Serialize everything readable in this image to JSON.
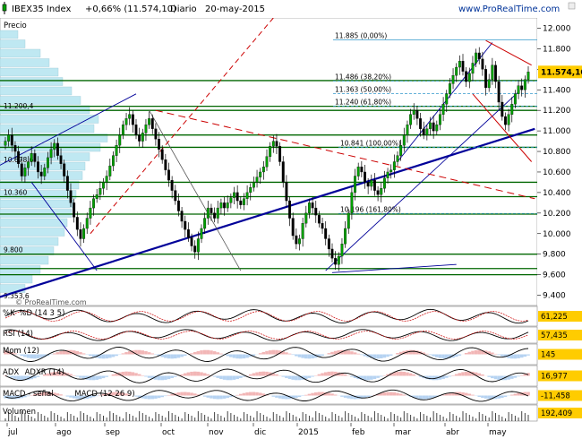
{
  "header": {
    "symbol": "IBEX35 Index",
    "change": "+0,66% (11.574,10)",
    "period": "Diario",
    "date": "20-may-2015",
    "site": "www.ProRealTime.com",
    "price_label": "Precio",
    "watermark": "© ProRealTime.com"
  },
  "colors": {
    "up_candle": "#00a000",
    "down_candle": "#000000",
    "support_green": "#006600",
    "trend_blue": "#000099",
    "resistance_red": "#cc0000",
    "fib_blue": "#3399cc",
    "volume_profile": "#bfe8f2",
    "last_price_bg": "#ffcc00",
    "panel_value_bg": "#ffcc00"
  },
  "chart_data": {
    "type": "candlestick",
    "title": "IBEX35 Index Diario",
    "y_axis_ticks": [
      "12.000",
      "11.800",
      "11.600",
      "11.400",
      "11.200",
      "11.000",
      "10.800",
      "10.600",
      "10.400",
      "10.200",
      "10.000",
      "9.800",
      "9.600",
      "9.400"
    ],
    "ylim": [
      9300,
      12100
    ],
    "x_axis_ticks": [
      "jul",
      "ago",
      "sep",
      "oct",
      "nov",
      "dic",
      "2015",
      "feb",
      "mar",
      "abr",
      "may"
    ],
    "last_price": "11.574,10",
    "left_level_labels": [
      "11.200,4",
      "10.678,6",
      "10.360",
      "9.800",
      "9.353,6"
    ],
    "fibonacci_levels": [
      {
        "label": "11.885 (0,00%)",
        "value": 11885
      },
      {
        "label": "11.486 (38,20%)",
        "value": 11486
      },
      {
        "label": "11.363 (50,00%)",
        "value": 11363
      },
      {
        "label": "11.240 (61,80%)",
        "value": 11240
      },
      {
        "label": "10.841 (100,00%)",
        "value": 10841
      },
      {
        "label": "10.196 (161,80%)",
        "value": 10196
      }
    ],
    "horizontal_support_levels": [
      11490,
      11240,
      11200,
      10960,
      10840,
      10500,
      10360,
      10190,
      9800,
      9660,
      9600
    ],
    "closes": [
      10900,
      10960,
      10860,
      10800,
      10680,
      10560,
      10640,
      10700,
      10780,
      10700,
      10600,
      10560,
      10640,
      10740,
      10820,
      10880,
      10760,
      10680,
      10560,
      10420,
      10300,
      10160,
      10040,
      9950,
      10050,
      10150,
      10250,
      10340,
      10380,
      10440,
      10500,
      10560,
      10660,
      10760,
      10860,
      10960,
      11060,
      11120,
      11160,
      11060,
      10960,
      10900,
      10980,
      11060,
      11120,
      11020,
      10920,
      10820,
      10720,
      10620,
      10520,
      10420,
      10320,
      10220,
      10120,
      10040,
      9960,
      9880,
      9820,
      9950,
      10050,
      10150,
      10250,
      10200,
      10150,
      10250,
      10300,
      10250,
      10300,
      10350,
      10400,
      10320,
      10280,
      10340,
      10400,
      10450,
      10500,
      10550,
      10600,
      10650,
      10750,
      10850,
      10900,
      10850,
      10700,
      10500,
      10320,
      10150,
      9980,
      9900,
      9950,
      10100,
      10200,
      10300,
      10250,
      10180,
      10100,
      10050,
      9950,
      9850,
      9760,
      9700,
      9780,
      9900,
      10050,
      10200,
      10400,
      10560,
      10650,
      10600,
      10500,
      10460,
      10520,
      10420,
      10380,
      10440,
      10540,
      10600,
      10620,
      10700,
      10760,
      10860,
      10960,
      11060,
      11160,
      11200,
      11120,
      11020,
      10960,
      11020,
      11080,
      11000,
      11060,
      11160,
      11260,
      11360,
      11460,
      11540,
      11620,
      11680,
      11580,
      11480,
      11560,
      11660,
      11760,
      11700,
      11600,
      11420,
      11500,
      11640,
      11480,
      11280,
      11140,
      11060,
      11160,
      11260,
      11360,
      11440,
      11400,
      11500,
      11574
    ],
    "indicators": [
      {
        "name": "%K",
        "label": "%D (14 3 5)",
        "value": "61,225"
      },
      {
        "name": "RSI (14)",
        "value": "57,435"
      },
      {
        "name": "Mom (12)",
        "value": "145"
      },
      {
        "name": "ADX",
        "label": "ADXR (14)",
        "value": "16,977"
      },
      {
        "name": "MACD - señal",
        "label": "MACD (12 26 9)",
        "value": "-11,458"
      },
      {
        "name": "Volumen",
        "value": "192,409"
      }
    ]
  }
}
